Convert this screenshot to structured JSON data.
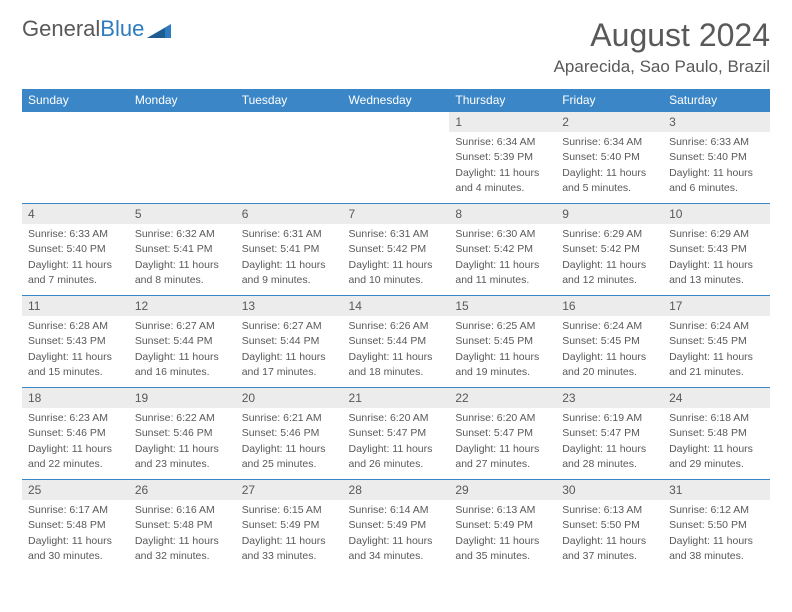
{
  "logo": {
    "text1": "General",
    "text2": "Blue"
  },
  "title": "August 2024",
  "location": "Aparecida, Sao Paulo, Brazil",
  "colors": {
    "header_bg": "#3b86c6",
    "header_text": "#ffffff",
    "daynum_bg": "#ececec",
    "text": "#595959",
    "border": "#3b86c6",
    "logo_gray": "#595959",
    "logo_blue": "#2f7bbf"
  },
  "weekdays": [
    "Sunday",
    "Monday",
    "Tuesday",
    "Wednesday",
    "Thursday",
    "Friday",
    "Saturday"
  ],
  "weeks": [
    [
      null,
      null,
      null,
      null,
      {
        "n": "1",
        "sr": "Sunrise: 6:34 AM",
        "ss": "Sunset: 5:39 PM",
        "dl1": "Daylight: 11 hours",
        "dl2": "and 4 minutes."
      },
      {
        "n": "2",
        "sr": "Sunrise: 6:34 AM",
        "ss": "Sunset: 5:40 PM",
        "dl1": "Daylight: 11 hours",
        "dl2": "and 5 minutes."
      },
      {
        "n": "3",
        "sr": "Sunrise: 6:33 AM",
        "ss": "Sunset: 5:40 PM",
        "dl1": "Daylight: 11 hours",
        "dl2": "and 6 minutes."
      }
    ],
    [
      {
        "n": "4",
        "sr": "Sunrise: 6:33 AM",
        "ss": "Sunset: 5:40 PM",
        "dl1": "Daylight: 11 hours",
        "dl2": "and 7 minutes."
      },
      {
        "n": "5",
        "sr": "Sunrise: 6:32 AM",
        "ss": "Sunset: 5:41 PM",
        "dl1": "Daylight: 11 hours",
        "dl2": "and 8 minutes."
      },
      {
        "n": "6",
        "sr": "Sunrise: 6:31 AM",
        "ss": "Sunset: 5:41 PM",
        "dl1": "Daylight: 11 hours",
        "dl2": "and 9 minutes."
      },
      {
        "n": "7",
        "sr": "Sunrise: 6:31 AM",
        "ss": "Sunset: 5:42 PM",
        "dl1": "Daylight: 11 hours",
        "dl2": "and 10 minutes."
      },
      {
        "n": "8",
        "sr": "Sunrise: 6:30 AM",
        "ss": "Sunset: 5:42 PM",
        "dl1": "Daylight: 11 hours",
        "dl2": "and 11 minutes."
      },
      {
        "n": "9",
        "sr": "Sunrise: 6:29 AM",
        "ss": "Sunset: 5:42 PM",
        "dl1": "Daylight: 11 hours",
        "dl2": "and 12 minutes."
      },
      {
        "n": "10",
        "sr": "Sunrise: 6:29 AM",
        "ss": "Sunset: 5:43 PM",
        "dl1": "Daylight: 11 hours",
        "dl2": "and 13 minutes."
      }
    ],
    [
      {
        "n": "11",
        "sr": "Sunrise: 6:28 AM",
        "ss": "Sunset: 5:43 PM",
        "dl1": "Daylight: 11 hours",
        "dl2": "and 15 minutes."
      },
      {
        "n": "12",
        "sr": "Sunrise: 6:27 AM",
        "ss": "Sunset: 5:44 PM",
        "dl1": "Daylight: 11 hours",
        "dl2": "and 16 minutes."
      },
      {
        "n": "13",
        "sr": "Sunrise: 6:27 AM",
        "ss": "Sunset: 5:44 PM",
        "dl1": "Daylight: 11 hours",
        "dl2": "and 17 minutes."
      },
      {
        "n": "14",
        "sr": "Sunrise: 6:26 AM",
        "ss": "Sunset: 5:44 PM",
        "dl1": "Daylight: 11 hours",
        "dl2": "and 18 minutes."
      },
      {
        "n": "15",
        "sr": "Sunrise: 6:25 AM",
        "ss": "Sunset: 5:45 PM",
        "dl1": "Daylight: 11 hours",
        "dl2": "and 19 minutes."
      },
      {
        "n": "16",
        "sr": "Sunrise: 6:24 AM",
        "ss": "Sunset: 5:45 PM",
        "dl1": "Daylight: 11 hours",
        "dl2": "and 20 minutes."
      },
      {
        "n": "17",
        "sr": "Sunrise: 6:24 AM",
        "ss": "Sunset: 5:45 PM",
        "dl1": "Daylight: 11 hours",
        "dl2": "and 21 minutes."
      }
    ],
    [
      {
        "n": "18",
        "sr": "Sunrise: 6:23 AM",
        "ss": "Sunset: 5:46 PM",
        "dl1": "Daylight: 11 hours",
        "dl2": "and 22 minutes."
      },
      {
        "n": "19",
        "sr": "Sunrise: 6:22 AM",
        "ss": "Sunset: 5:46 PM",
        "dl1": "Daylight: 11 hours",
        "dl2": "and 23 minutes."
      },
      {
        "n": "20",
        "sr": "Sunrise: 6:21 AM",
        "ss": "Sunset: 5:46 PM",
        "dl1": "Daylight: 11 hours",
        "dl2": "and 25 minutes."
      },
      {
        "n": "21",
        "sr": "Sunrise: 6:20 AM",
        "ss": "Sunset: 5:47 PM",
        "dl1": "Daylight: 11 hours",
        "dl2": "and 26 minutes."
      },
      {
        "n": "22",
        "sr": "Sunrise: 6:20 AM",
        "ss": "Sunset: 5:47 PM",
        "dl1": "Daylight: 11 hours",
        "dl2": "and 27 minutes."
      },
      {
        "n": "23",
        "sr": "Sunrise: 6:19 AM",
        "ss": "Sunset: 5:47 PM",
        "dl1": "Daylight: 11 hours",
        "dl2": "and 28 minutes."
      },
      {
        "n": "24",
        "sr": "Sunrise: 6:18 AM",
        "ss": "Sunset: 5:48 PM",
        "dl1": "Daylight: 11 hours",
        "dl2": "and 29 minutes."
      }
    ],
    [
      {
        "n": "25",
        "sr": "Sunrise: 6:17 AM",
        "ss": "Sunset: 5:48 PM",
        "dl1": "Daylight: 11 hours",
        "dl2": "and 30 minutes."
      },
      {
        "n": "26",
        "sr": "Sunrise: 6:16 AM",
        "ss": "Sunset: 5:48 PM",
        "dl1": "Daylight: 11 hours",
        "dl2": "and 32 minutes."
      },
      {
        "n": "27",
        "sr": "Sunrise: 6:15 AM",
        "ss": "Sunset: 5:49 PM",
        "dl1": "Daylight: 11 hours",
        "dl2": "and 33 minutes."
      },
      {
        "n": "28",
        "sr": "Sunrise: 6:14 AM",
        "ss": "Sunset: 5:49 PM",
        "dl1": "Daylight: 11 hours",
        "dl2": "and 34 minutes."
      },
      {
        "n": "29",
        "sr": "Sunrise: 6:13 AM",
        "ss": "Sunset: 5:49 PM",
        "dl1": "Daylight: 11 hours",
        "dl2": "and 35 minutes."
      },
      {
        "n": "30",
        "sr": "Sunrise: 6:13 AM",
        "ss": "Sunset: 5:50 PM",
        "dl1": "Daylight: 11 hours",
        "dl2": "and 37 minutes."
      },
      {
        "n": "31",
        "sr": "Sunrise: 6:12 AM",
        "ss": "Sunset: 5:50 PM",
        "dl1": "Daylight: 11 hours",
        "dl2": "and 38 minutes."
      }
    ]
  ]
}
